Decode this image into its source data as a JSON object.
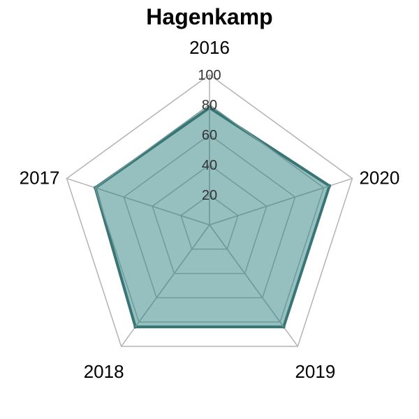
{
  "chart_data": {
    "type": "radar",
    "title": "Hagenkamp",
    "categories": [
      "2016",
      "2017",
      "2018",
      "2019",
      "2020"
    ],
    "series": [
      {
        "values": [
          78,
          80,
          84,
          84,
          84
        ]
      }
    ],
    "rmin": 0,
    "rmax": 100,
    "ticks": [
      "20",
      "40",
      "60",
      "80",
      "100"
    ],
    "tick_values": [
      20,
      40,
      60,
      80,
      100
    ],
    "colors": {
      "fill": "#3f8c8c",
      "line": "#3a7575",
      "grid_inner": "#6f9a9a",
      "grid_outer": "#b3b3b3"
    }
  }
}
